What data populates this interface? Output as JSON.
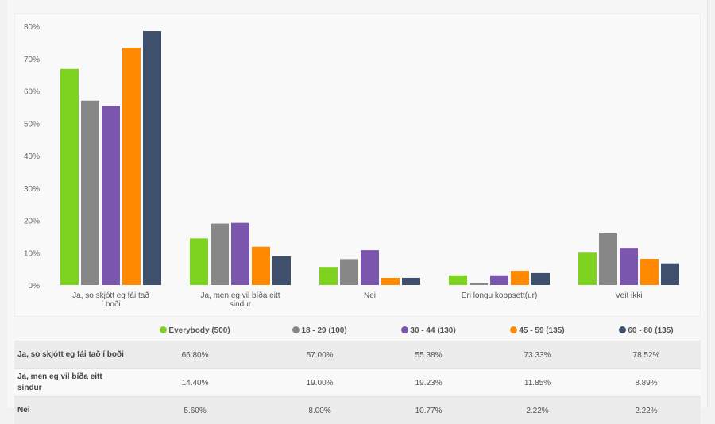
{
  "chart_data": {
    "type": "bar",
    "title": "",
    "xlabel": "",
    "ylabel": "",
    "ylim": [
      0,
      80
    ],
    "yticks": [
      "0%",
      "10%",
      "20%",
      "30%",
      "40%",
      "50%",
      "60%",
      "70%",
      "80%"
    ],
    "grid": false,
    "legend_position": "bottom",
    "categories": [
      [
        "Ja, so skjótt eg fái tað",
        "í boði"
      ],
      [
        "Ja, men eg vil bíða eitt",
        "sindur"
      ],
      [
        "Nei"
      ],
      [
        "Eri longu koppsett(ur)"
      ],
      [
        "Veit ikki"
      ]
    ],
    "series": [
      {
        "name": "Everybody (500)",
        "color": "#7ed321",
        "values": [
          66.8,
          14.4,
          5.6,
          3.0,
          10.0
        ]
      },
      {
        "name": "18 - 29 (100)",
        "color": "#878787",
        "values": [
          57.0,
          19.0,
          8.0,
          0.5,
          16.0
        ]
      },
      {
        "name": "30 - 44 (130)",
        "color": "#7a57ad",
        "values": [
          55.38,
          19.23,
          10.77,
          3.0,
          11.5
        ]
      },
      {
        "name": "45 - 59 (135)",
        "color": "#ff8a00",
        "values": [
          73.33,
          11.85,
          2.22,
          4.4,
          8.1
        ]
      },
      {
        "name": "60 - 80 (135)",
        "color": "#3e506b",
        "values": [
          78.52,
          8.89,
          2.22,
          3.7,
          6.7
        ]
      }
    ]
  },
  "table": {
    "headers": [
      "Everybody (500)",
      "18 - 29 (100)",
      "30 - 44 (130)",
      "45 - 59 (135)",
      "60 - 80 (135)"
    ],
    "header_colors": [
      "#7ed321",
      "#878787",
      "#7a57ad",
      "#ff8a00",
      "#3e506b"
    ],
    "rows": [
      {
        "label": "Ja, so skjótt eg fái tað í boði",
        "values": [
          "66.80%",
          "57.00%",
          "55.38%",
          "73.33%",
          "78.52%"
        ]
      },
      {
        "label": "Ja, men eg vil bíða eitt sindur",
        "values": [
          "14.40%",
          "19.00%",
          "19.23%",
          "11.85%",
          "8.89%"
        ]
      },
      {
        "label": "Nei",
        "values": [
          "5.60%",
          "8.00%",
          "10.77%",
          "2.22%",
          "2.22%"
        ]
      }
    ]
  }
}
